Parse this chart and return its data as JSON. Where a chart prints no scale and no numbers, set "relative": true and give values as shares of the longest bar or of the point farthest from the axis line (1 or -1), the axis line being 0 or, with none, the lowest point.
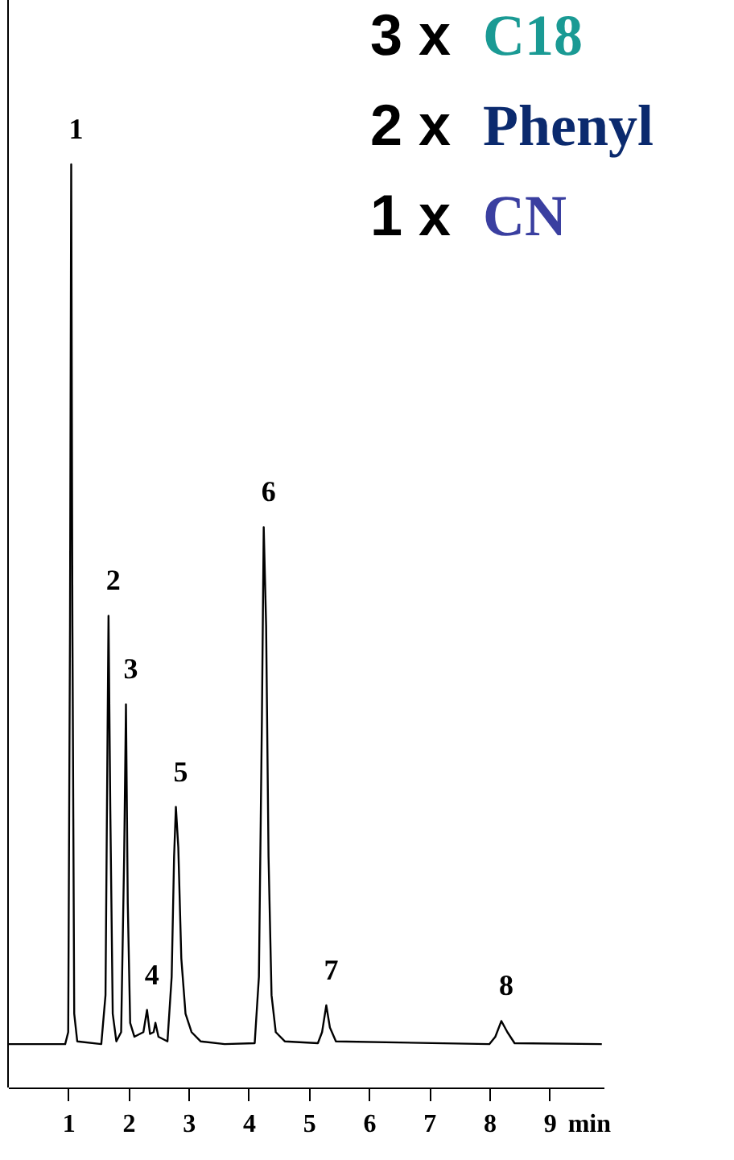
{
  "chart_data": {
    "type": "line",
    "relative": true,
    "xlabel": "min",
    "xlim": [
      0,
      9.9
    ],
    "xticks": [
      1,
      2,
      3,
      4,
      5,
      6,
      7,
      8,
      9
    ],
    "grid": false,
    "marker": "none",
    "line_style": "solid",
    "series": [
      {
        "color": "#000000",
        "x": [
          0.0,
          0.95,
          1.0,
          1.03,
          1.05,
          1.07,
          1.1,
          1.15,
          1.55,
          1.62,
          1.65,
          1.67,
          1.7,
          1.74,
          1.8,
          1.88,
          1.93,
          1.96,
          1.99,
          2.03,
          2.1,
          2.25,
          2.31,
          2.36,
          2.42,
          2.45,
          2.5,
          2.65,
          2.72,
          2.76,
          2.79,
          2.83,
          2.88,
          2.95,
          3.05,
          3.2,
          3.6,
          4.1,
          4.17,
          4.22,
          4.25,
          4.29,
          4.33,
          4.38,
          4.45,
          4.6,
          5.15,
          5.22,
          5.29,
          5.35,
          5.45,
          8.0,
          8.1,
          8.2,
          8.3,
          8.42,
          9.87
        ],
        "values": [
          0.047,
          0.047,
          0.06,
          0.5,
          1.0,
          0.5,
          0.08,
          0.05,
          0.047,
          0.1,
          0.35,
          0.511,
          0.3,
          0.08,
          0.05,
          0.06,
          0.25,
          0.415,
          0.2,
          0.07,
          0.055,
          0.06,
          0.084,
          0.058,
          0.06,
          0.07,
          0.055,
          0.05,
          0.12,
          0.25,
          0.304,
          0.26,
          0.14,
          0.08,
          0.06,
          0.05,
          0.047,
          0.048,
          0.12,
          0.4,
          0.607,
          0.5,
          0.25,
          0.1,
          0.06,
          0.05,
          0.048,
          0.06,
          0.089,
          0.065,
          0.05,
          0.047,
          0.055,
          0.072,
          0.06,
          0.048,
          0.047
        ]
      }
    ],
    "annotations": [
      {
        "text": "1",
        "x": 1.05,
        "y": 1.0
      },
      {
        "text": "2",
        "x": 1.67,
        "y": 0.511
      },
      {
        "text": "3",
        "x": 1.96,
        "y": 0.415
      },
      {
        "text": "4",
        "x": 2.31,
        "y": 0.084
      },
      {
        "text": "5",
        "x": 2.79,
        "y": 0.304
      },
      {
        "text": "6",
        "x": 4.25,
        "y": 0.607
      },
      {
        "text": "7",
        "x": 5.29,
        "y": 0.089
      },
      {
        "text": "8",
        "x": 8.2,
        "y": 0.072
      },
      "3 x C18",
      "2 x Phenyl",
      "1 x CN"
    ]
  }
}
